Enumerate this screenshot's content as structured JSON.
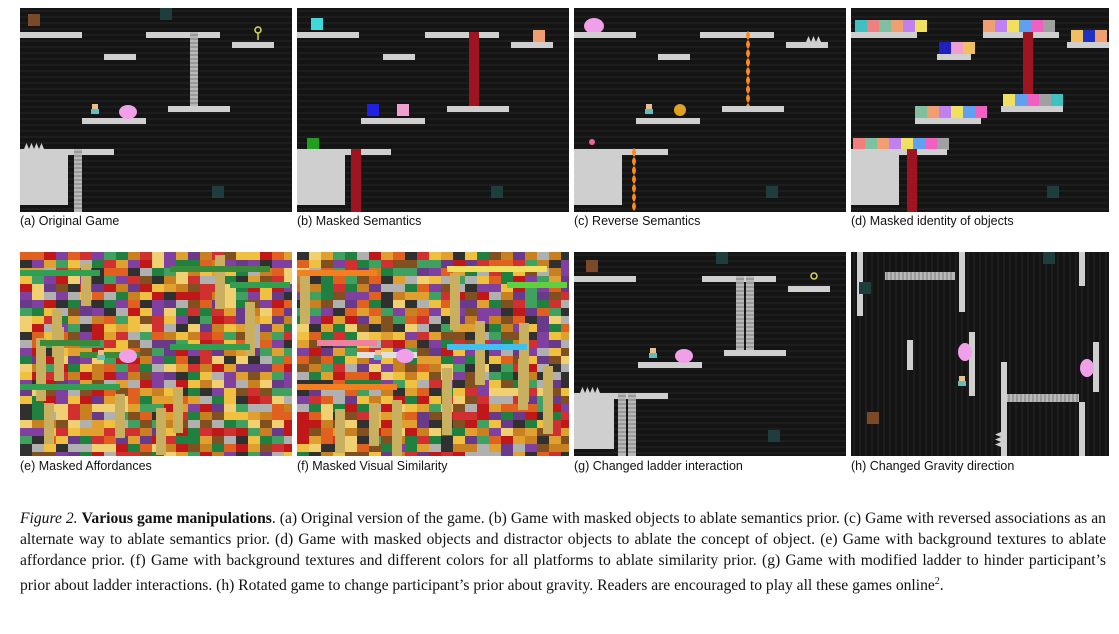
{
  "figure": {
    "panels": [
      {
        "id": "a",
        "label": "(a) Original Game"
      },
      {
        "id": "b",
        "label": "(b) Masked Semantics"
      },
      {
        "id": "c",
        "label": "(c) Reverse Semantics"
      },
      {
        "id": "d",
        "label": "(d) Masked identity of objects"
      },
      {
        "id": "e",
        "label": "(e) Masked Affordances"
      },
      {
        "id": "f",
        "label": "(f) Masked Visual Similarity"
      },
      {
        "id": "g",
        "label": "(g) Changed ladder interaction"
      },
      {
        "id": "h",
        "label": "(h) Changed Gravity direction"
      }
    ],
    "caption": {
      "label": "Figure 2.",
      "title": "Various game manipulations",
      "body": ". (a) Original version of the game. (b) Game with masked objects to ablate semantics prior. (c) Game with reversed associations as an alternate way to ablate semantics prior. (d) Game with masked objects and distractor objects to ablate the concept of object. (e) Game with background textures to ablate affordance prior. (f) Game with background textures and different colors for all platforms to ablate similarity prior. (g) Game with modified ladder to hinder participant’s prior about ladder interactions. (h) Rotated game to change participant’s prior about gravity. Readers are encouraged to play all these games online",
      "footnote": "2",
      "end": "."
    }
  },
  "colors": {
    "background": "#141414",
    "platform": "#cfcfcf",
    "masked_ladder": "#9e1420",
    "enemy": "#f0a0e8",
    "key": "#d8d860"
  }
}
